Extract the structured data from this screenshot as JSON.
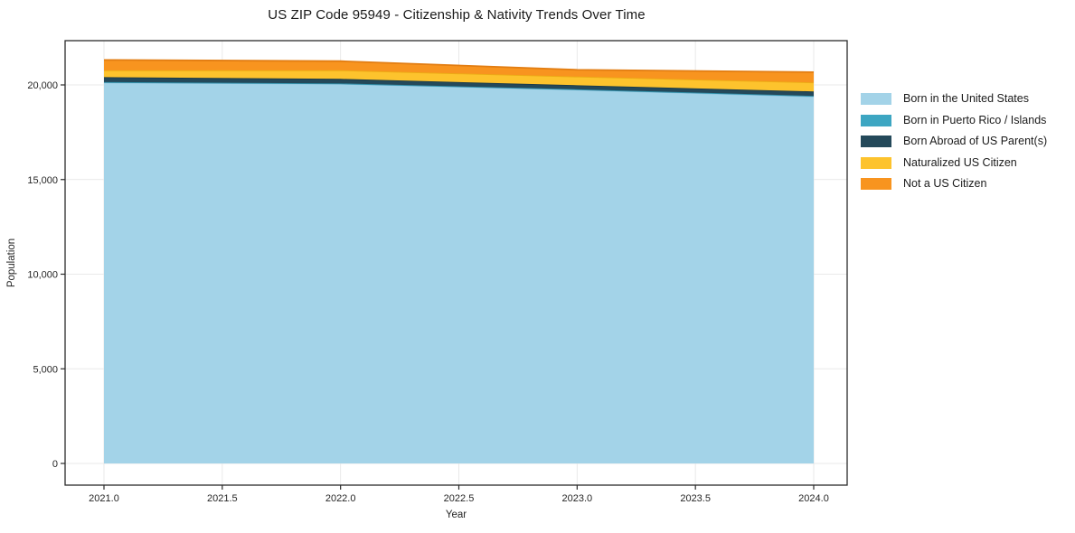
{
  "title": "US ZIP Code 95949 - Citizenship & Nativity Trends Over Time",
  "chart_data": {
    "type": "area",
    "stacked": true,
    "title": "US ZIP Code 95949 - Citizenship & Nativity Trends Over Time",
    "xlabel": "Year",
    "ylabel": "Population",
    "x": [
      2021,
      2022,
      2023,
      2024
    ],
    "series": [
      {
        "name": "Born in the United States",
        "color": "#A3D3E8",
        "edge_color": "#8AC2DD",
        "values": [
          20130,
          20060,
          19750,
          19390
        ]
      },
      {
        "name": "Born in Puerto Rico / Islands",
        "color": "#3DA6C2",
        "edge_color": "#3191AB",
        "values": [
          20,
          20,
          20,
          30
        ]
      },
      {
        "name": "Born Abroad of US Parent(s)",
        "color": "#24495A",
        "edge_color": "#1B3A48",
        "values": [
          260,
          240,
          215,
          235
        ]
      },
      {
        "name": "Naturalized US Citizen",
        "color": "#FDC32D",
        "edge_color": "#ECAC15",
        "values": [
          360,
          455,
          455,
          475
        ]
      },
      {
        "name": "Not a US Citizen",
        "color": "#F8941F",
        "edge_color": "#E27D12",
        "values": [
          550,
          480,
          360,
          545
        ]
      }
    ],
    "stacked_totals": [
      21320,
      21255,
      20800,
      20675
    ],
    "xticks": {
      "values": [
        2021.0,
        2021.5,
        2022.0,
        2022.5,
        2023.0,
        2023.5,
        2024.0
      ],
      "labels": [
        "2021.0",
        "2021.5",
        "2022.0",
        "2022.5",
        "2023.0",
        "2023.5",
        "2024.0"
      ]
    },
    "yticks": {
      "values": [
        0,
        5000,
        10000,
        15000,
        20000
      ],
      "labels": [
        "0",
        "5,000",
        "10,000",
        "15,000",
        "20,000"
      ]
    },
    "xlim": [
      2020.84,
      2024.14
    ],
    "ylim": [
      -1150,
      22340
    ],
    "grid": true,
    "grid_color": "#e9e9e9",
    "spine_color": "#2b2b2b",
    "tick_label_color": "#262626",
    "legend_position": "right-outside"
  }
}
